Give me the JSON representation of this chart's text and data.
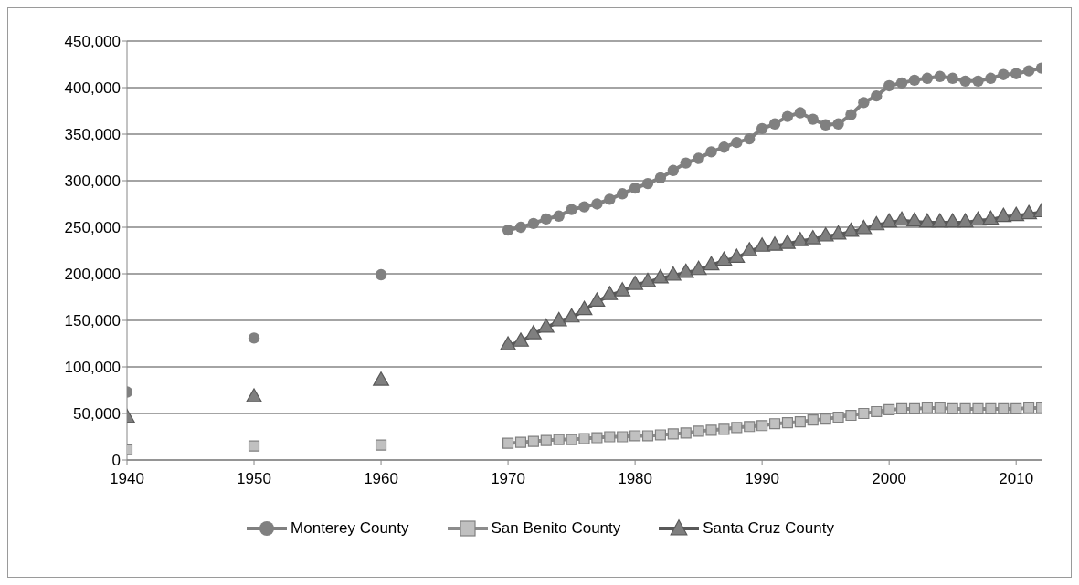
{
  "chart_data": {
    "type": "line",
    "x": [
      1940,
      1945,
      1950,
      1955,
      1960,
      1965,
      1970,
      1971,
      1972,
      1973,
      1974,
      1975,
      1976,
      1977,
      1978,
      1979,
      1980,
      1981,
      1982,
      1983,
      1984,
      1985,
      1986,
      1987,
      1988,
      1989,
      1990,
      1991,
      1992,
      1993,
      1994,
      1995,
      1996,
      1997,
      1998,
      1999,
      2000,
      2001,
      2002,
      2003,
      2004,
      2005,
      2006,
      2007,
      2008,
      2009,
      2010,
      2011,
      2012
    ],
    "series": [
      {
        "name": "Monterey County",
        "color": "#808080",
        "marker": "circle",
        "values": [
          73000,
          null,
          131000,
          null,
          199000,
          null,
          247000,
          250000,
          254000,
          259000,
          262000,
          269000,
          272000,
          275000,
          280000,
          286000,
          292000,
          297000,
          303000,
          311000,
          319000,
          324000,
          331000,
          336000,
          341000,
          345000,
          356000,
          361000,
          369000,
          373000,
          366000,
          360000,
          361000,
          371000,
          384000,
          391000,
          402000,
          405000,
          408000,
          410000,
          412000,
          410000,
          407000,
          407000,
          410000,
          414000,
          415000,
          418000,
          421000
        ]
      },
      {
        "name": "San Benito County",
        "color": "#c0c0c0",
        "marker": "square",
        "values": [
          11000,
          null,
          15000,
          null,
          16000,
          null,
          18000,
          19000,
          20000,
          21000,
          22000,
          22000,
          23000,
          24000,
          25000,
          25000,
          26000,
          26000,
          27000,
          28000,
          29000,
          31000,
          32000,
          33000,
          35000,
          36000,
          37000,
          39000,
          40000,
          41000,
          43000,
          44000,
          46000,
          48000,
          50000,
          52000,
          54000,
          55000,
          55000,
          56000,
          56000,
          55000,
          55000,
          55000,
          55000,
          55000,
          55000,
          56000,
          56000
        ]
      },
      {
        "name": "Santa Cruz County",
        "color": "#7f7f7f",
        "marker": "triangle",
        "values": [
          45000,
          null,
          67000,
          null,
          85000,
          null,
          123000,
          127000,
          135000,
          142000,
          149000,
          153000,
          161000,
          170000,
          177000,
          181000,
          188000,
          191000,
          195000,
          198000,
          201000,
          204000,
          209000,
          214000,
          217000,
          224000,
          229000,
          230000,
          232000,
          235000,
          237000,
          240000,
          242000,
          245000,
          248000,
          252000,
          255000,
          257000,
          256000,
          255000,
          255000,
          255000,
          255000,
          257000,
          258000,
          261000,
          262000,
          264000,
          266000
        ]
      }
    ],
    "xlim": [
      1940,
      2012
    ],
    "xticks": [
      1940,
      1950,
      1960,
      1970,
      1980,
      1990,
      2000,
      2010
    ],
    "ylim": [
      0,
      450000
    ],
    "yticks": [
      {
        "value": 0,
        "label": "0"
      },
      {
        "value": 50000,
        "label": "50,000"
      },
      {
        "value": 100000,
        "label": "100,000"
      },
      {
        "value": 150000,
        "label": "150,000"
      },
      {
        "value": 200000,
        "label": "200,000"
      },
      {
        "value": 250000,
        "label": "250,000"
      },
      {
        "value": 300000,
        "label": "300,000"
      },
      {
        "value": 350000,
        "label": "350,000"
      },
      {
        "value": 400000,
        "label": "400,000"
      },
      {
        "value": 450000,
        "label": "450,000"
      }
    ],
    "grid": "y",
    "legend": "bottom"
  }
}
